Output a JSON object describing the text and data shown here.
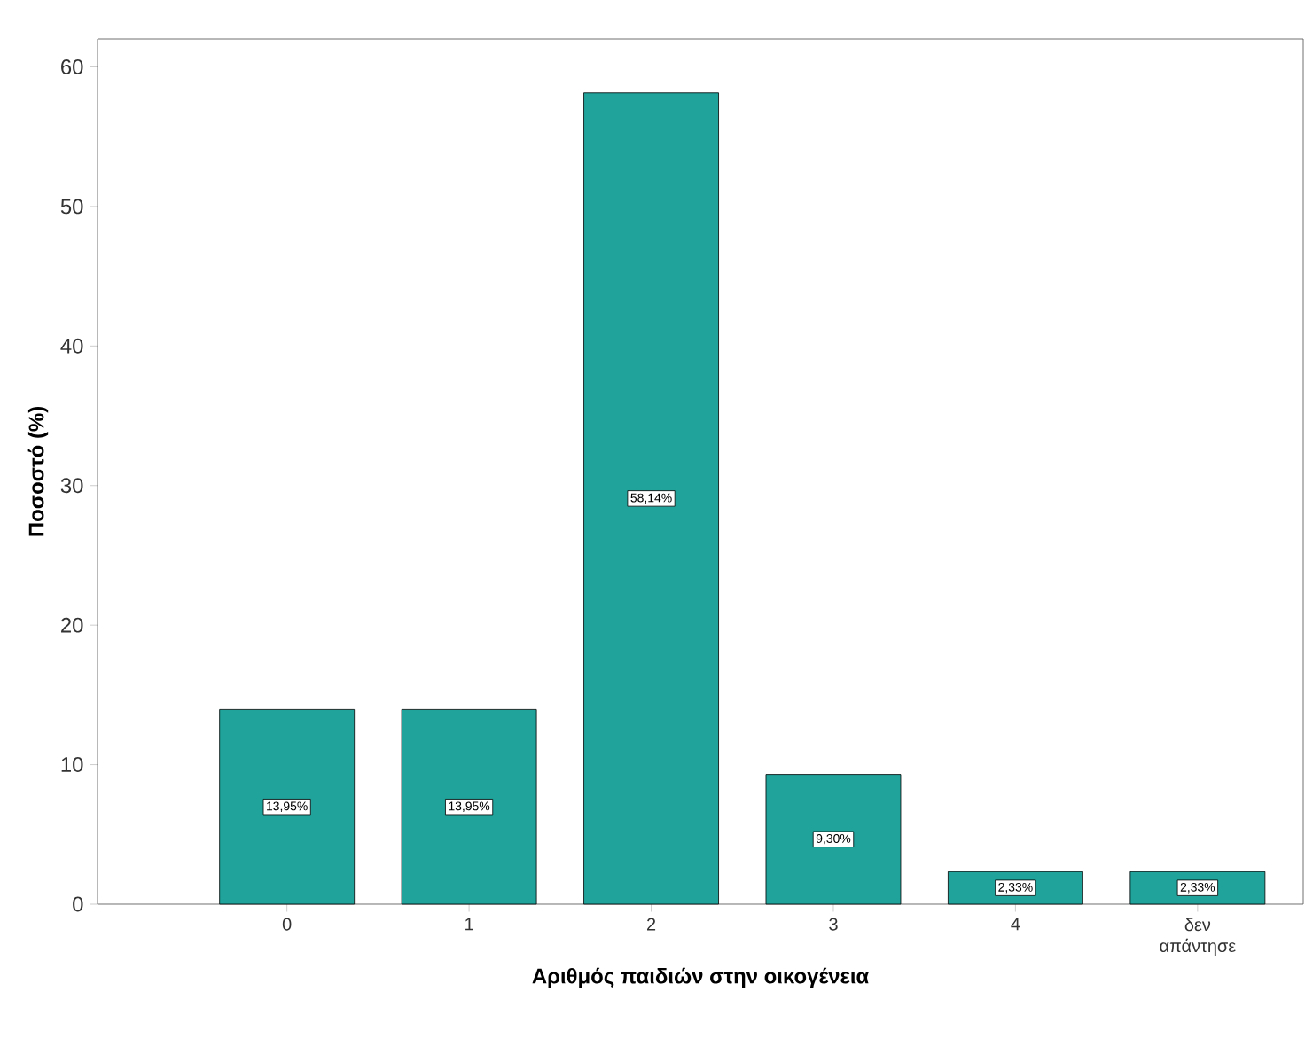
{
  "chart_data": {
    "type": "bar",
    "xlabel": "Αριθμός παιδιών στην οικογένεια",
    "ylabel": "Ποσοστό (%)",
    "categories": [
      "0",
      "1",
      "2",
      "3",
      "4",
      "δεν απάντησε"
    ],
    "values": [
      13.95,
      13.95,
      58.14,
      9.3,
      2.33,
      2.33
    ],
    "value_labels": [
      "13,95%",
      "13,95%",
      "58,14%",
      "9,30%",
      "2,33%",
      "2,33%"
    ],
    "color": "#1fa39a",
    "ylim": [
      0,
      62
    ],
    "yticks": [
      0,
      10,
      20,
      30,
      40,
      50,
      60
    ],
    "grid": false
  }
}
